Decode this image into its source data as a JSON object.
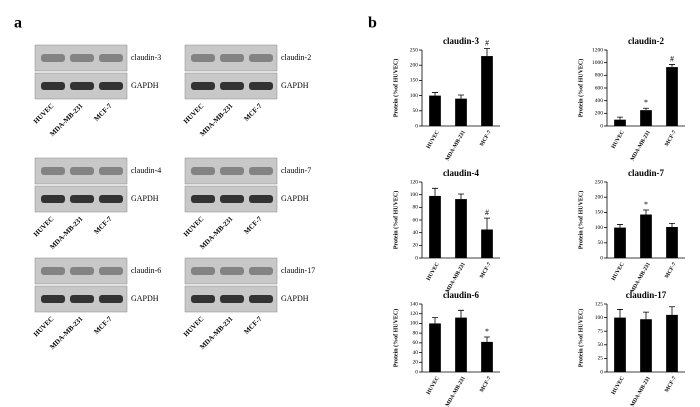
{
  "panel_labels": [
    "a",
    "b"
  ],
  "blots": [
    {
      "target": "claudin-3",
      "control": "GAPDH",
      "lanes": [
        "HUVEC",
        "MDA-MB-231",
        "MCF-7"
      ]
    },
    {
      "target": "claudin-2",
      "control": "GAPDH",
      "lanes": [
        "HUVEC",
        "MDA-MB-231",
        "MCF-7"
      ]
    },
    {
      "target": "claudin-4",
      "control": "GAPDH",
      "lanes": [
        "HUVEC",
        "MDA-MB-231",
        "MCF-7"
      ]
    },
    {
      "target": "claudin-7",
      "control": "GAPDH",
      "lanes": [
        "HUVEC",
        "MDA-MB-231",
        "MCF-7"
      ]
    },
    {
      "target": "claudin-6",
      "control": "GAPDH",
      "lanes": [
        "HUVEC",
        "MDA-MB-231",
        "MCF-7"
      ]
    },
    {
      "target": "claudin-17",
      "control": "GAPDH",
      "lanes": [
        "HUVEC",
        "MDA-MB-231",
        "MCF-7"
      ]
    }
  ],
  "chart_data": [
    {
      "type": "bar",
      "title": "claudin-3",
      "y_label": "Protein (%of HUVEC)",
      "categories": [
        "HUVEC",
        "MDA-MB-231",
        "MCF-7"
      ],
      "values": [
        100,
        90,
        230
      ],
      "errors": [
        10,
        12,
        25
      ],
      "markers": [
        null,
        null,
        "#"
      ],
      "color": "#000000",
      "ylim": [
        0,
        250
      ],
      "yticks": [
        0,
        50,
        100,
        150,
        200,
        250
      ]
    },
    {
      "type": "bar",
      "title": "claudin-2",
      "y_label": "Protein (%of HUVEC)",
      "categories": [
        "HUVEC",
        "MDA-MB-231",
        "MCF-7"
      ],
      "values": [
        100,
        250,
        930
      ],
      "errors": [
        40,
        30,
        40
      ],
      "markers": [
        null,
        "*",
        "#"
      ],
      "color": "#000000",
      "ylim": [
        0,
        1200
      ],
      "yticks": [
        0,
        200,
        400,
        600,
        800,
        1000,
        1200
      ]
    },
    {
      "type": "bar",
      "title": "claudin-4",
      "y_label": "Protein (%of HUVEC)",
      "categories": [
        "HUVEC",
        "MDA-MB-231",
        "MCF-7"
      ],
      "values": [
        98,
        93,
        45
      ],
      "errors": [
        12,
        8,
        18
      ],
      "markers": [
        null,
        null,
        "#"
      ],
      "color": "#000000",
      "ylim": [
        0,
        120
      ],
      "yticks": [
        0,
        20,
        40,
        60,
        80,
        100,
        120
      ]
    },
    {
      "type": "bar",
      "title": "claudin-7",
      "y_label": "Protein (%of HUVEC)",
      "categories": [
        "HUVEC",
        "MDA-MB-231",
        "MCF-7"
      ],
      "values": [
        100,
        143,
        102
      ],
      "errors": [
        10,
        15,
        12
      ],
      "markers": [
        null,
        "*",
        null
      ],
      "color": "#000000",
      "ylim": [
        0,
        250
      ],
      "yticks": [
        0,
        50,
        100,
        150,
        200,
        250
      ]
    },
    {
      "type": "bar",
      "title": "claudin-6",
      "y_label": "Protein (%of HUVEC)",
      "categories": [
        "HUVEC",
        "MDA-MB-231",
        "MCF-7"
      ],
      "values": [
        100,
        112,
        62
      ],
      "errors": [
        12,
        15,
        10
      ],
      "markers": [
        null,
        null,
        "*"
      ],
      "color": "#000000",
      "ylim": [
        0,
        140
      ],
      "yticks": [
        0,
        20,
        40,
        60,
        80,
        100,
        120,
        140
      ]
    },
    {
      "type": "bar",
      "title": "claudin-17",
      "y_label": "Protein (%of HUVEC)",
      "categories": [
        "HUVEC",
        "MDA-MB-231",
        "MCF-7"
      ],
      "values": [
        100,
        97,
        105
      ],
      "errors": [
        15,
        13,
        15
      ],
      "markers": [
        null,
        null,
        null
      ],
      "color": "#000000",
      "ylim": [
        0,
        125
      ],
      "yticks": [
        0,
        25,
        50,
        75,
        100,
        125
      ]
    }
  ]
}
